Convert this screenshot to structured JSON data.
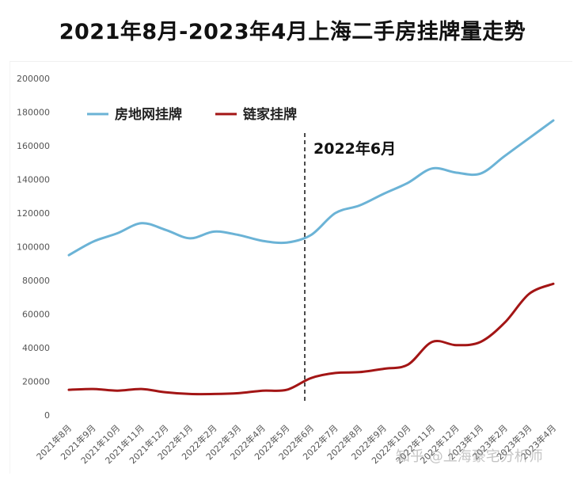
{
  "chart_data": {
    "type": "line",
    "title": "2021年8月-2023年4月上海二手房挂牌量走势",
    "xlabel": "",
    "ylabel": "",
    "ylim": [
      0,
      200000
    ],
    "yticks": [
      0,
      20000,
      40000,
      60000,
      80000,
      100000,
      120000,
      140000,
      160000,
      180000,
      200000
    ],
    "grid": false,
    "legend_position": "top-left",
    "categories": [
      "2021年8月",
      "2021年9月",
      "2021年10月",
      "2021年11月",
      "2021年12月",
      "2022年1月",
      "2022年2月",
      "2022年3月",
      "2022年4月",
      "2022年5月",
      "2022年6月",
      "2022年7月",
      "2022年8月",
      "2022年9月",
      "2022年10月",
      "2022年11月",
      "2022年12月",
      "2023年1月",
      "2023年2月",
      "2023年3月",
      "2023年4月"
    ],
    "series": [
      {
        "name": "房地网挂牌",
        "color": "#6BB3D6",
        "values": [
          95000,
          103000,
          108000,
          114000,
          110000,
          105000,
          109000,
          107000,
          103500,
          102500,
          107000,
          120000,
          124500,
          131500,
          138000,
          146500,
          144000,
          143500,
          154000,
          164500,
          175000
        ]
      },
      {
        "name": "链家挂牌",
        "color": "#A31515",
        "values": [
          15000,
          15500,
          14500,
          15500,
          13500,
          12500,
          12500,
          13000,
          14500,
          15000,
          22000,
          25000,
          25500,
          27500,
          30000,
          43500,
          41500,
          43500,
          55000,
          72000,
          78000
        ]
      }
    ],
    "annotations": [
      {
        "text": "2022年6月",
        "x": "2022年6月",
        "style": "dashed-vertical-line"
      }
    ]
  },
  "watermark": "知乎 @上海豪宅分析师"
}
